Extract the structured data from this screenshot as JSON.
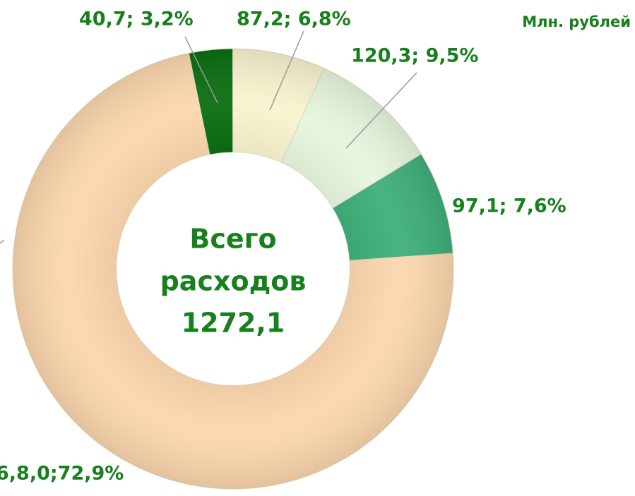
{
  "chart_data": {
    "type": "donut",
    "unit_label": "Млн. рублей",
    "center_label": [
      "Всего",
      "расходов",
      "1272,1"
    ],
    "values": [
      3.2,
      6.8,
      9.5,
      7.6,
      72.9
    ],
    "value_labels": [
      "40,7; 3,2%",
      "87,2; 6,8%",
      "120,3; 9,5%",
      "97,1; 7,6%",
      "6,8,0;72,9%"
    ],
    "colors": [
      "#0b6e12",
      "#f8f3cf",
      "#e7f6de",
      "#3faf7a",
      "#fcd7ae"
    ]
  }
}
